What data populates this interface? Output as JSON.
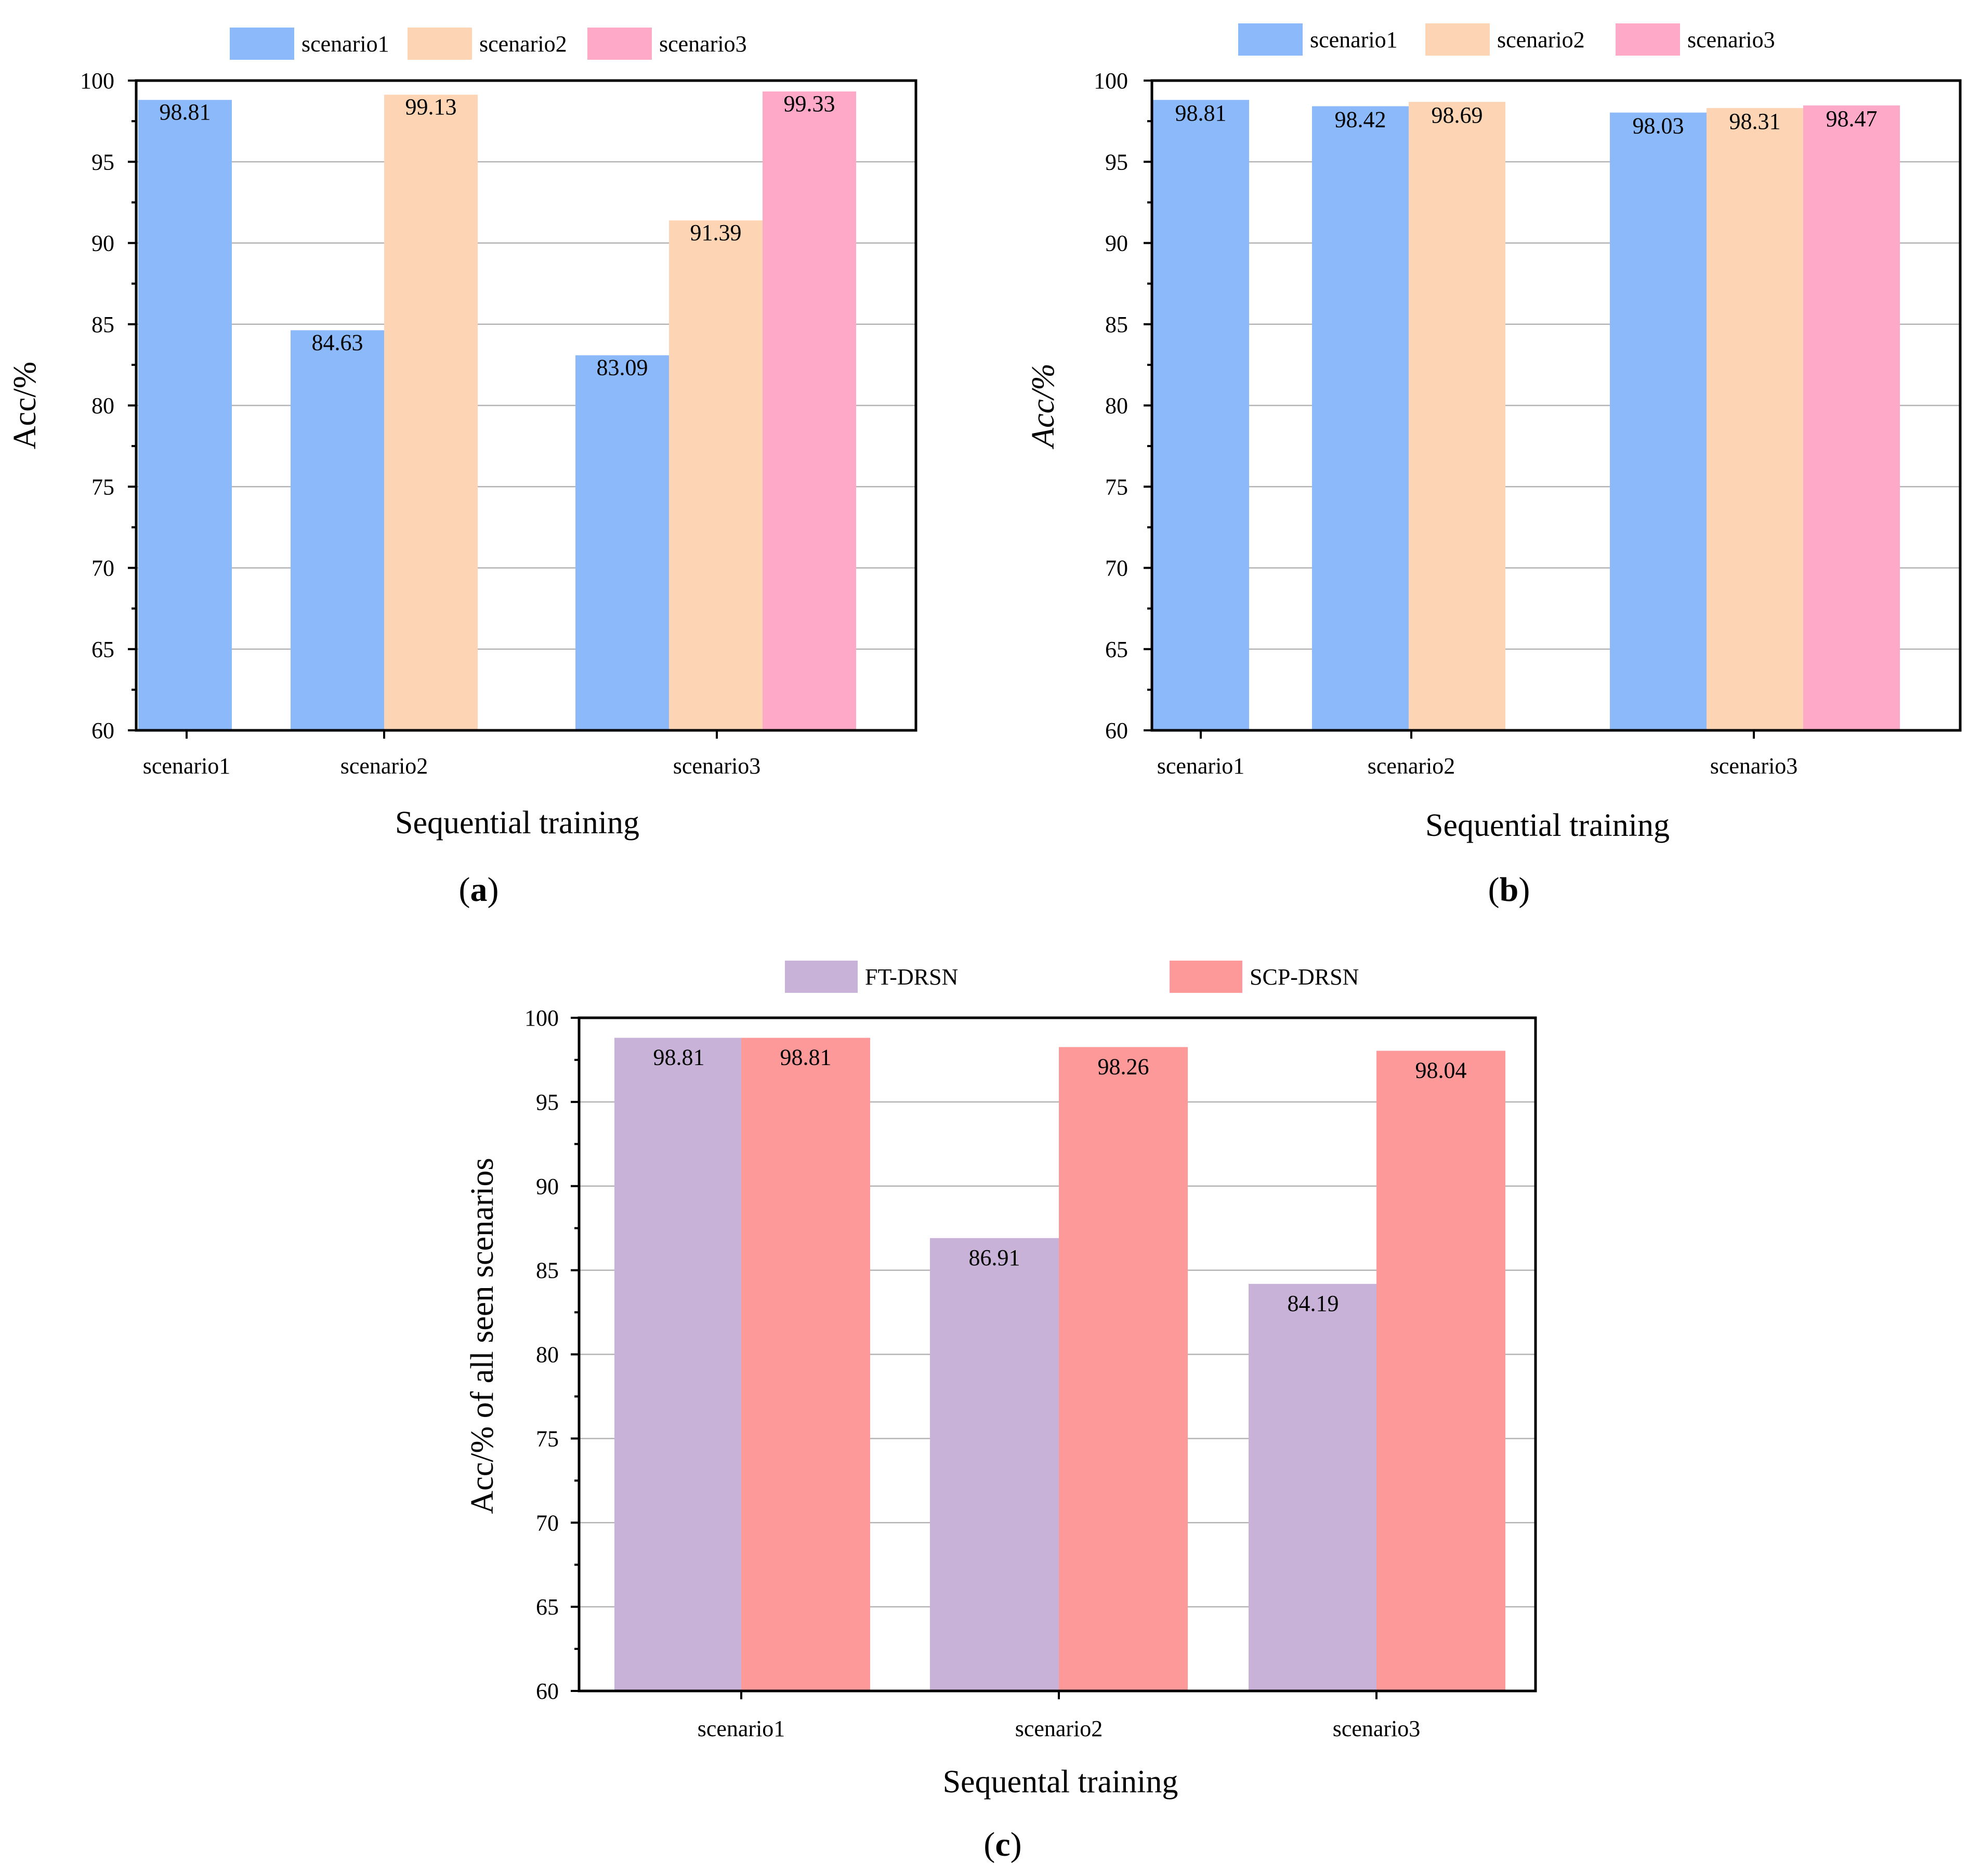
{
  "colors": {
    "scenario1": "#8bb9fa",
    "scenario2": "#fdd5b4",
    "scenario3": "#fea9c8",
    "ft_drsn": "#c8b2d7",
    "scp_drsn": "#fd9999"
  },
  "chart_data": [
    {
      "id": "a",
      "type": "bar",
      "caption_letter": "a",
      "xlabel": "Sequential training",
      "ylabel": "Acc/%",
      "ylim": [
        60,
        100
      ],
      "yticks": [
        60,
        65,
        70,
        75,
        80,
        85,
        90,
        95,
        100
      ],
      "grid": true,
      "legend_position": "top",
      "categories": [
        "scenario1",
        "scenario2",
        "scenario3"
      ],
      "series": [
        {
          "name": "scenario1",
          "color_key": "scenario1",
          "values": [
            98.81,
            84.63,
            83.09
          ],
          "labels": [
            "98.81",
            "84.63",
            "83.09"
          ]
        },
        {
          "name": "scenario2",
          "color_key": "scenario2",
          "values": [
            null,
            99.13,
            91.39
          ],
          "labels": [
            "",
            "99.13",
            "91.39"
          ]
        },
        {
          "name": "scenario3",
          "color_key": "scenario3",
          "values": [
            null,
            null,
            99.33
          ],
          "labels": [
            "",
            "",
            "99.33"
          ]
        }
      ]
    },
    {
      "id": "b",
      "type": "bar",
      "caption_letter": "b",
      "xlabel": "Sequential training",
      "ylabel": "Acc/%",
      "ylim": [
        60,
        100
      ],
      "yticks": [
        60,
        65,
        70,
        75,
        80,
        85,
        90,
        95,
        100
      ],
      "grid": true,
      "legend_position": "top",
      "categories": [
        "scenario1",
        "scenario2",
        "scenario3"
      ],
      "series": [
        {
          "name": "scenario1",
          "color_key": "scenario1",
          "values": [
            98.81,
            98.42,
            98.03
          ],
          "labels": [
            "98.81",
            "98.42",
            "98.03"
          ]
        },
        {
          "name": "scenario2",
          "color_key": "scenario2",
          "values": [
            null,
            98.69,
            98.31
          ],
          "labels": [
            "",
            "98.69",
            "98.31"
          ]
        },
        {
          "name": "scenario3",
          "color_key": "scenario3",
          "values": [
            null,
            null,
            98.47
          ],
          "labels": [
            "",
            "",
            "98.47"
          ]
        }
      ]
    },
    {
      "id": "c",
      "type": "bar",
      "caption_letter": "c",
      "xlabel": "Sequental training",
      "ylabel": "Acc/% of all seen scenarios",
      "ylim": [
        60,
        100
      ],
      "yticks": [
        60,
        65,
        70,
        75,
        80,
        85,
        90,
        95,
        100
      ],
      "grid": true,
      "legend_position": "top",
      "categories": [
        "scenario1",
        "scenario2",
        "scenario3"
      ],
      "series": [
        {
          "name": "FT-DRSN",
          "color_key": "ft_drsn",
          "values": [
            98.81,
            86.91,
            84.19
          ],
          "labels": [
            "98.81",
            "86.91",
            "84.19"
          ]
        },
        {
          "name": "SCP-DRSN",
          "color_key": "scp_drsn",
          "values": [
            98.81,
            98.26,
            98.04
          ],
          "labels": [
            "98.81",
            "98.26",
            "98.04"
          ]
        }
      ]
    }
  ]
}
